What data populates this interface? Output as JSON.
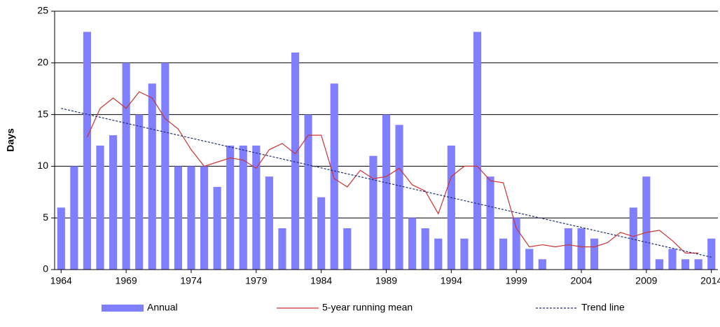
{
  "chart_data": {
    "type": "bar",
    "y_label": "Days",
    "x": [
      1964,
      1965,
      1966,
      1967,
      1968,
      1969,
      1970,
      1971,
      1972,
      1973,
      1974,
      1975,
      1976,
      1977,
      1978,
      1979,
      1980,
      1981,
      1982,
      1983,
      1984,
      1985,
      1986,
      1987,
      1988,
      1989,
      1990,
      1991,
      1992,
      1993,
      1994,
      1995,
      1996,
      1997,
      1998,
      1999,
      2000,
      2001,
      2002,
      2003,
      2004,
      2005,
      2006,
      2007,
      2008,
      2009,
      2010,
      2011,
      2012,
      2013,
      2014
    ],
    "series": [
      {
        "name": "Annual",
        "kind": "bar",
        "color": "#7f7fff",
        "values": [
          6,
          10,
          23,
          12,
          13,
          20,
          15,
          18,
          20,
          10,
          10,
          10,
          8,
          12,
          12,
          12,
          9,
          4,
          21,
          15,
          7,
          18,
          4,
          0,
          11,
          15,
          14,
          5,
          4,
          3,
          12,
          3,
          23,
          9,
          3,
          5,
          2,
          1,
          0,
          4,
          4,
          3,
          0,
          0,
          6,
          9,
          1,
          2,
          1,
          1,
          3
        ]
      },
      {
        "name": "5-year running mean",
        "kind": "line",
        "color": "#cc3333",
        "values": [
          null,
          null,
          12.8,
          15.6,
          16.6,
          15.6,
          17.2,
          16.6,
          14.6,
          13.6,
          11.6,
          10,
          10.4,
          10.8,
          10.6,
          9.8,
          11.6,
          12.2,
          11.2,
          13,
          13,
          8.8,
          8,
          9.6,
          8.8,
          9,
          9.8,
          8.2,
          7.6,
          5.4,
          9,
          10,
          10,
          8.6,
          8.4,
          4,
          2.2,
          2.4,
          2.2,
          2.4,
          2.2,
          2.2,
          2.6,
          3.6,
          3.2,
          3.6,
          3.8,
          2.8,
          1.6,
          1.6,
          null
        ]
      },
      {
        "name": "Trend line",
        "kind": "dashed",
        "color": "#1f2f6f",
        "x": [
          1964,
          2014
        ],
        "values": [
          15.6,
          1.2
        ]
      }
    ],
    "xlim": [
      1963.5,
      2014.5
    ],
    "xticks": [
      1964,
      1969,
      1974,
      1979,
      1984,
      1989,
      1994,
      1999,
      2004,
      2009,
      2014
    ],
    "ylim": [
      0,
      25
    ],
    "yticks": [
      0,
      5,
      10,
      15,
      20,
      25
    ],
    "grid": true
  }
}
